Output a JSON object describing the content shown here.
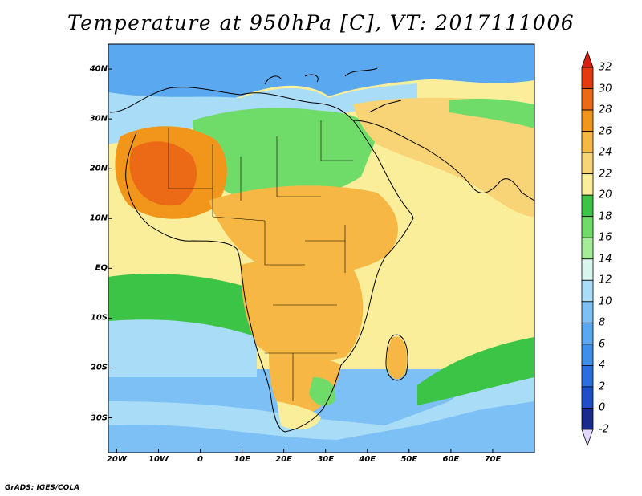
{
  "title": "Temperature at 950hPa [C], VT: 2017111006",
  "credit": "GrADS: IGES/COLA",
  "map": {
    "lon_range": [
      -22,
      80
    ],
    "lat_range": [
      -37,
      45
    ],
    "lat_ticks": [
      {
        "value": 40,
        "label": "40N"
      },
      {
        "value": 30,
        "label": "30N"
      },
      {
        "value": 20,
        "label": "20N"
      },
      {
        "value": 10,
        "label": "10N"
      },
      {
        "value": 0,
        "label": "EQ"
      },
      {
        "value": -10,
        "label": "10S"
      },
      {
        "value": -20,
        "label": "20S"
      },
      {
        "value": -30,
        "label": "30S"
      }
    ],
    "lon_ticks": [
      {
        "value": -20,
        "label": "20W"
      },
      {
        "value": -10,
        "label": "10W"
      },
      {
        "value": 0,
        "label": "0"
      },
      {
        "value": 10,
        "label": "10E"
      },
      {
        "value": 20,
        "label": "20E"
      },
      {
        "value": 30,
        "label": "30E"
      },
      {
        "value": 40,
        "label": "40E"
      },
      {
        "value": 50,
        "label": "50E"
      },
      {
        "value": 60,
        "label": "60E"
      },
      {
        "value": 70,
        "label": "70E"
      }
    ]
  },
  "colorbar": {
    "labels": [
      "-2",
      "0",
      "2",
      "4",
      "6",
      "8",
      "10",
      "12",
      "14",
      "16",
      "18",
      "20",
      "22",
      "24",
      "26",
      "28",
      "30",
      "32"
    ],
    "colors": [
      "#e3d9ff",
      "#1a2a8c",
      "#1e4fc8",
      "#2b6ee0",
      "#3e8eeb",
      "#5aa9f0",
      "#7cc0f5",
      "#a8dcf7",
      "#d9f6ee",
      "#a5ec98",
      "#6fdc6a",
      "#3cc447",
      "#fbee9b",
      "#f8d476",
      "#f6b744",
      "#f1961a",
      "#ec6a15",
      "#e33a10",
      "#d81f0f"
    ]
  },
  "field_colors": {
    "ocean_warm": "#fbee9b",
    "ocean_tropical_green": "#3cc447",
    "ocean_cool": "#a8dcf7",
    "ocean_cold": "#7cc0f5",
    "land_hot": "#f6b744",
    "land_very_hot": "#ec6a15",
    "land_green": "#6fdc6a",
    "land_mild": "#f8d476",
    "north_cold": "#5aa9f0"
  }
}
